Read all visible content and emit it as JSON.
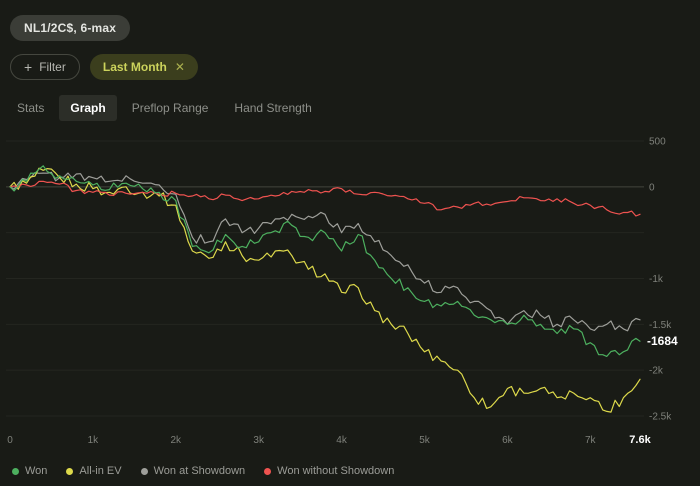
{
  "header": {
    "table_badge": "NL1/2C$, 6-max"
  },
  "filters": {
    "filter_button_label": "Filter",
    "chips": [
      {
        "label": "Last Month"
      }
    ]
  },
  "tabs": [
    {
      "label": "Stats",
      "active": false
    },
    {
      "label": "Graph",
      "active": true
    },
    {
      "label": "Preflop Range",
      "active": false
    },
    {
      "label": "Hand Strength",
      "active": false
    }
  ],
  "chart_data": {
    "type": "line",
    "title": "",
    "grid": true,
    "legend_position": "bottom",
    "x_axis": {
      "min": 0,
      "max": 7600,
      "ticks": [
        {
          "value": 0,
          "label": "0"
        },
        {
          "value": 1000,
          "label": "1k"
        },
        {
          "value": 2000,
          "label": "2k"
        },
        {
          "value": 3000,
          "label": "3k"
        },
        {
          "value": 4000,
          "label": "4k"
        },
        {
          "value": 5000,
          "label": "5k"
        },
        {
          "value": 6000,
          "label": "6k"
        },
        {
          "value": 7000,
          "label": "7k"
        }
      ],
      "current": {
        "value": 7600,
        "label": "7.6k"
      }
    },
    "y_axis": {
      "min": -2500,
      "max": 500,
      "ticks": [
        {
          "value": 500,
          "label": "500"
        },
        {
          "value": 0,
          "label": "0"
        },
        {
          "value": -500,
          "label": ""
        },
        {
          "value": -1000,
          "label": "-1k"
        },
        {
          "value": -1500,
          "label": "-1.5k"
        },
        {
          "value": -2000,
          "label": "-2k"
        },
        {
          "value": -2500,
          "label": "-2.5k"
        }
      ]
    },
    "current_value": {
      "value": -1684,
      "label": "-1684",
      "series": "Won"
    },
    "x_step": 200,
    "series": [
      {
        "name": "Won",
        "color": "#4db05f",
        "values": [
          0,
          60,
          230,
          120,
          60,
          20,
          -30,
          40,
          -20,
          -60,
          -150,
          -650,
          -720,
          -520,
          -650,
          -600,
          -480,
          -420,
          -550,
          -500,
          -700,
          -520,
          -800,
          -1000,
          -1100,
          -1250,
          -1300,
          -1250,
          -1400,
          -1450,
          -1500,
          -1400,
          -1500,
          -1600,
          -1550,
          -1700,
          -1850,
          -1800,
          -1684
        ]
      },
      {
        "name": "All-in EV",
        "color": "#ddd94b",
        "values": [
          0,
          40,
          180,
          100,
          30,
          -20,
          -60,
          0,
          -60,
          -100,
          -200,
          -700,
          -780,
          -600,
          -750,
          -800,
          -700,
          -750,
          -900,
          -950,
          -1150,
          -1100,
          -1350,
          -1500,
          -1600,
          -1800,
          -1900,
          -2000,
          -2300,
          -2400,
          -2200,
          -2250,
          -2200,
          -2300,
          -2250,
          -2300,
          -2450,
          -2300,
          -2100
        ]
      },
      {
        "name": "Won at Showdown",
        "color": "#9e9f9a",
        "values": [
          0,
          80,
          150,
          100,
          140,
          100,
          60,
          120,
          40,
          20,
          -80,
          -550,
          -600,
          -350,
          -500,
          -450,
          -350,
          -300,
          -320,
          -300,
          -500,
          -400,
          -600,
          -750,
          -850,
          -1050,
          -1150,
          -1100,
          -1250,
          -1350,
          -1500,
          -1350,
          -1400,
          -1500,
          -1450,
          -1550,
          -1500,
          -1550,
          -1450
        ]
      },
      {
        "name": "Won without Showdown",
        "color": "#ef5350",
        "values": [
          0,
          20,
          60,
          30,
          -40,
          -60,
          -90,
          -70,
          -60,
          -80,
          -70,
          -100,
          -130,
          -90,
          -150,
          -130,
          -100,
          -50,
          -30,
          -50,
          -20,
          -80,
          -60,
          -100,
          -130,
          -180,
          -250,
          -220,
          -180,
          -200,
          -160,
          -120,
          -150,
          -130,
          -180,
          -200,
          -250,
          -280,
          -300
        ]
      }
    ]
  }
}
